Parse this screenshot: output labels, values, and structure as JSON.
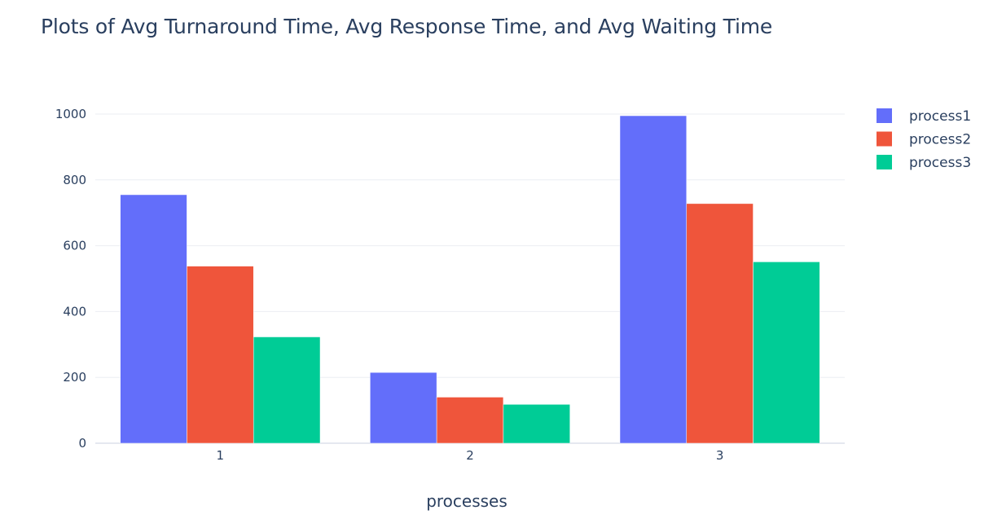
{
  "chart_data": {
    "type": "bar",
    "title": "Plots of Avg Turnaround Time, Avg Response Time, and Avg Waiting Time",
    "xlabel": "processes",
    "ylabel": "",
    "categories": [
      "1",
      "2",
      "3"
    ],
    "series": [
      {
        "name": "process1",
        "color": "#636efa",
        "values": [
          755,
          215,
          995
        ]
      },
      {
        "name": "process2",
        "color": "#ef553b",
        "values": [
          538,
          140,
          728
        ]
      },
      {
        "name": "process3",
        "color": "#00cc96",
        "values": [
          323,
          118,
          551
        ]
      }
    ],
    "ylim": [
      0,
      1000
    ],
    "yticks": [
      0,
      200,
      400,
      600,
      800,
      1000
    ],
    "grid": true,
    "legend_position": "top-right"
  }
}
